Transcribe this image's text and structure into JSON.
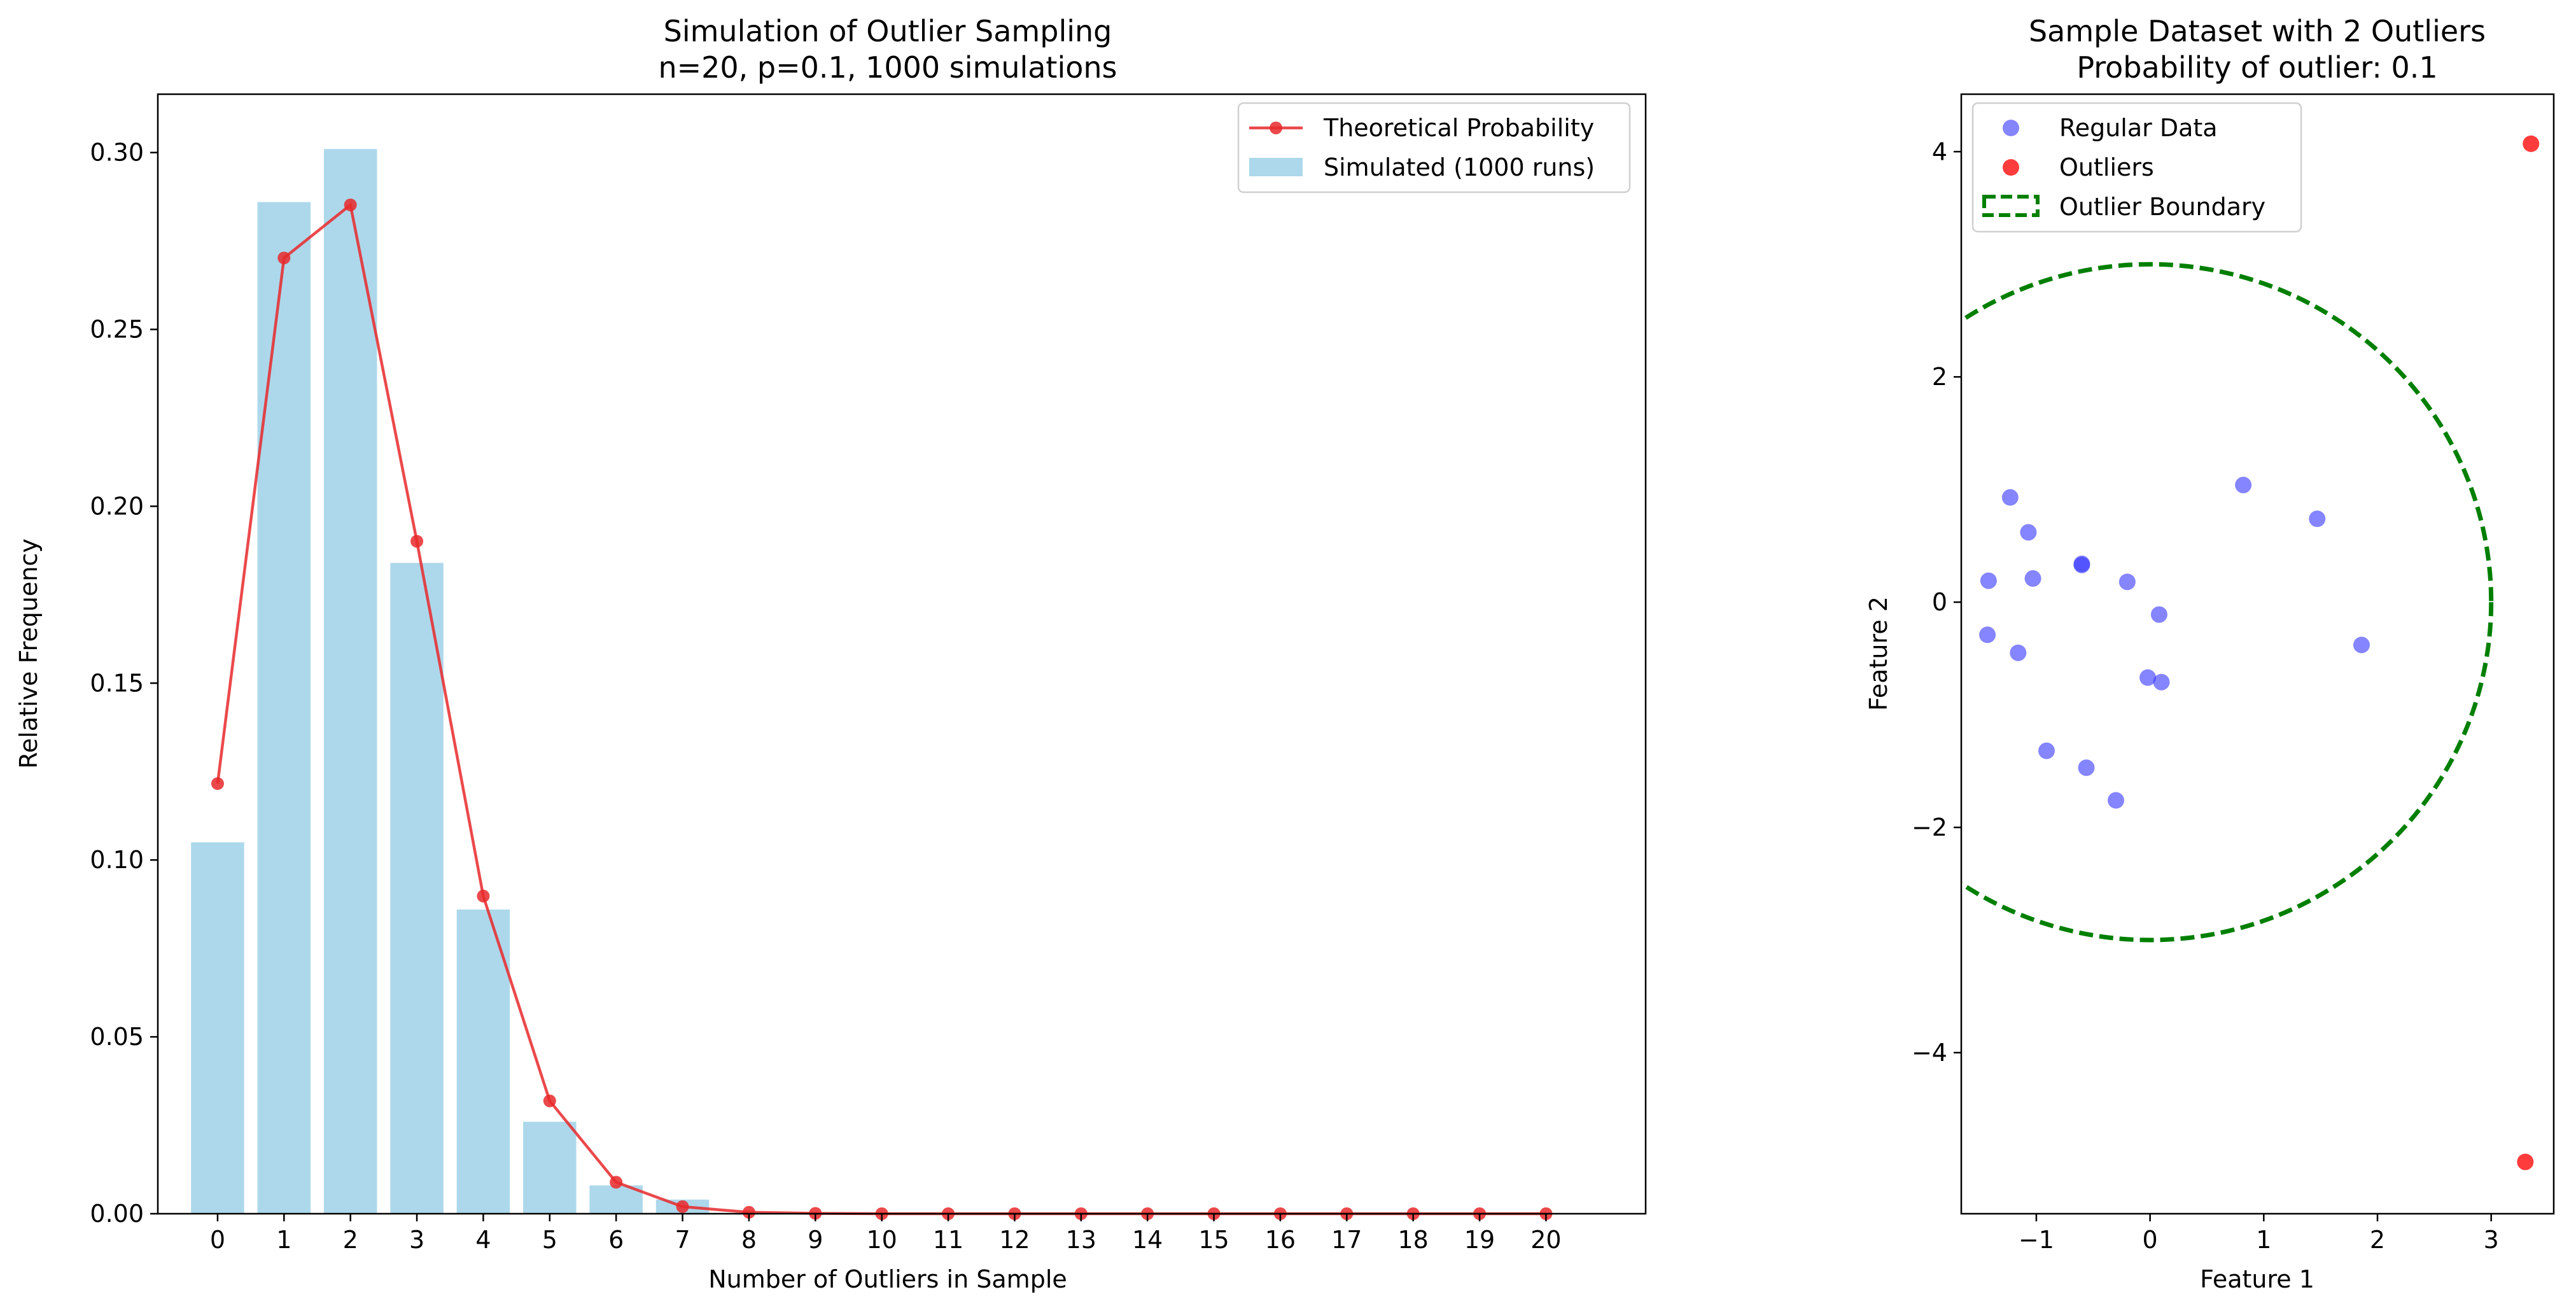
{
  "chart_data": [
    {
      "type": "bar",
      "title": "Simulation of Outlier Sampling",
      "subtitle": "n=20, p=0.1, 1000 simulations",
      "xlabel": "Number of Outliers in Sample",
      "ylabel": "Relative Frequency",
      "xlim": [
        -0.9,
        21.5
      ],
      "ylim": [
        0,
        0.3165
      ],
      "x_ticks": [
        0,
        1,
        2,
        3,
        4,
        5,
        6,
        7,
        8,
        9,
        10,
        11,
        12,
        13,
        14,
        15,
        16,
        17,
        18,
        19,
        20
      ],
      "y_ticks": [
        0.0,
        0.05,
        0.1,
        0.15,
        0.2,
        0.25,
        0.3
      ],
      "y_tick_labels": [
        "0.00",
        "0.05",
        "0.10",
        "0.15",
        "0.20",
        "0.25",
        "0.30"
      ],
      "grid": false,
      "legend_position": "top-right",
      "categories": [
        0,
        1,
        2,
        3,
        4,
        5,
        6,
        7,
        8,
        9,
        10,
        11,
        12,
        13,
        14,
        15,
        16,
        17,
        18,
        19,
        20
      ],
      "series": [
        {
          "name": "Theoretical Probability",
          "kind": "line",
          "color": "#e8292b",
          "values": [
            0.1216,
            0.2702,
            0.2852,
            0.1901,
            0.0898,
            0.0319,
            0.0089,
            0.002,
            0.0004,
            0.0001,
            0,
            0,
            0,
            0,
            0,
            0,
            0,
            0,
            0,
            0,
            0
          ]
        },
        {
          "name": "Simulated (1000 runs)",
          "kind": "bar",
          "color": "#add8eb",
          "values": [
            0.105,
            0.286,
            0.301,
            0.184,
            0.086,
            0.026,
            0.008,
            0.004,
            0,
            0,
            0,
            0,
            0,
            0,
            0,
            0,
            0,
            0,
            0,
            0,
            0
          ]
        }
      ]
    },
    {
      "type": "scatter",
      "title": "Sample Dataset with 2 Outliers",
      "subtitle": "Probability of outlier: 0.1",
      "xlabel": "Feature 1",
      "ylabel": "Feature 2",
      "xlim": [
        -1.66,
        3.55
      ],
      "ylim": [
        -5.43,
        4.51
      ],
      "x_ticks": [
        -1,
        0,
        1,
        2,
        3
      ],
      "x_tick_labels": [
        "−1",
        "0",
        "1",
        "2",
        "3"
      ],
      "y_ticks": [
        -4,
        -2,
        0,
        2,
        4
      ],
      "y_tick_labels": [
        "−4",
        "−2",
        "0",
        "2",
        "4"
      ],
      "grid": false,
      "legend_position": "top-left",
      "series": [
        {
          "name": "Regular Data",
          "color": "#3333ff",
          "points": [
            [
              -1.23,
              0.93
            ],
            [
              -1.07,
              0.62
            ],
            [
              -1.42,
              0.19
            ],
            [
              -1.03,
              0.21
            ],
            [
              -0.6,
              0.34
            ],
            [
              -0.6,
              0.33
            ],
            [
              -0.2,
              0.18
            ],
            [
              0.08,
              -0.11
            ],
            [
              -1.43,
              -0.29
            ],
            [
              -1.16,
              -0.45
            ],
            [
              -0.02,
              -0.67
            ],
            [
              0.1,
              -0.71
            ],
            [
              0.82,
              1.04
            ],
            [
              1.47,
              0.74
            ],
            [
              1.86,
              -0.38
            ],
            [
              -0.91,
              -1.32
            ],
            [
              -0.56,
              -1.47
            ],
            [
              -0.3,
              -1.76
            ]
          ]
        },
        {
          "name": "Outliers",
          "color": "#ff1a1a",
          "points": [
            [
              3.35,
              4.07
            ],
            [
              3.3,
              -4.97
            ]
          ]
        },
        {
          "name": "Outlier Boundary",
          "color": "#007f00",
          "kind": "circle",
          "center": [
            0,
            0
          ],
          "radius": 3
        }
      ]
    }
  ]
}
